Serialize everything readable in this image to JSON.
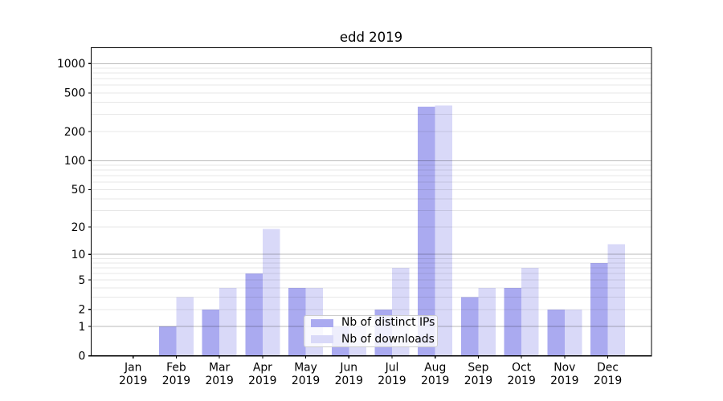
{
  "chart_data": {
    "type": "bar",
    "title": "edd 2019",
    "categories": [
      "Jan 2019",
      "Feb 2019",
      "Mar 2019",
      "Apr 2019",
      "May 2019",
      "Jun 2019",
      "Jul 2019",
      "Aug 2019",
      "Sep 2019",
      "Oct 2019",
      "Nov 2019",
      "Dec 2019"
    ],
    "series": [
      {
        "name": "Nb of distinct IPs",
        "color": "#aaaaf0",
        "values": [
          0,
          1,
          2,
          6,
          4,
          1,
          2,
          360,
          3,
          4,
          2,
          8
        ]
      },
      {
        "name": "Nb of downloads",
        "color": "#d9d9f8",
        "values": [
          0,
          3,
          4,
          19,
          4,
          1,
          7,
          370,
          4,
          7,
          2,
          13
        ]
      }
    ],
    "xlabel": "",
    "ylabel": "",
    "yscale": "log1p",
    "y_ticks": [
      0,
      1,
      2,
      5,
      10,
      20,
      50,
      100,
      200,
      500,
      1000
    ],
    "ylim": [
      0,
      1455
    ],
    "grid": "horizontal, major at powers of 10 darker, minor subs lighter",
    "legend_position": "lower center inside plot"
  },
  "colors": {
    "major_grid": "rgba(0,0,0,0.27)",
    "minor_grid": "rgba(0,0,0,0.095)",
    "spine": "#000000",
    "text": "#000000",
    "legend_border": "#cccccc",
    "legend_bg": "rgba(255,255,255,0.8)"
  }
}
